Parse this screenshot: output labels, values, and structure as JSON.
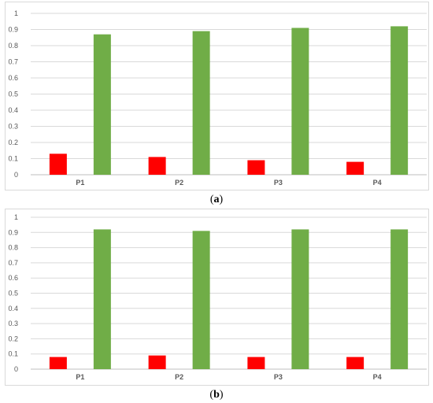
{
  "captions": [
    {
      "open": "(",
      "letter": "a",
      "close": ")"
    },
    {
      "open": "(",
      "letter": "b",
      "close": ")"
    }
  ],
  "colors": {
    "series_1": "#ff0000",
    "series_2": "#70ad47",
    "grid": "#d9d9d9",
    "axis": "#bfbfbf"
  },
  "chart_data": [
    {
      "type": "bar",
      "title": "",
      "xlabel": "",
      "ylabel": "",
      "categories": [
        "P1",
        "P2",
        "P3",
        "P4"
      ],
      "series": [
        {
          "color": "#ff0000",
          "values": [
            0.13,
            0.11,
            0.09,
            0.08
          ]
        },
        {
          "color": "#70ad47",
          "values": [
            0.87,
            0.89,
            0.91,
            0.92
          ]
        }
      ],
      "ylim": [
        0,
        1
      ],
      "yticks": [
        "0",
        "0.1",
        "0.2",
        "0.3",
        "0.4",
        "0.5",
        "0.6",
        "0.7",
        "0.8",
        "0.9",
        "1"
      ],
      "grid": true,
      "legend": "none"
    },
    {
      "type": "bar",
      "title": "",
      "xlabel": "",
      "ylabel": "",
      "categories": [
        "P1",
        "P2",
        "P3",
        "P4"
      ],
      "series": [
        {
          "color": "#ff0000",
          "values": [
            0.08,
            0.09,
            0.08,
            0.08
          ]
        },
        {
          "color": "#70ad47",
          "values": [
            0.92,
            0.91,
            0.92,
            0.92
          ]
        }
      ],
      "ylim": [
        0,
        1
      ],
      "yticks": [
        "0",
        "0.1",
        "0.2",
        "0.3",
        "0.4",
        "0.5",
        "0.6",
        "0.7",
        "0.8",
        "0.9",
        "1"
      ],
      "grid": true,
      "legend": "none"
    }
  ]
}
